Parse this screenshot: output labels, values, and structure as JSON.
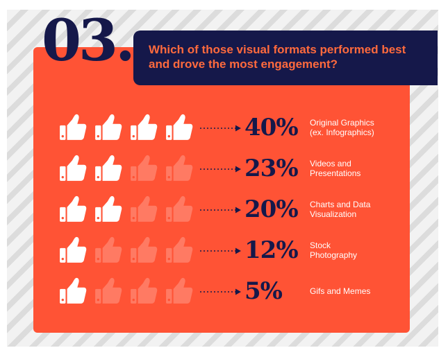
{
  "header": {
    "number": "03.",
    "question_line1": "Which of those visual formats performed best",
    "question_line2": "and drove the most engagement?"
  },
  "colors": {
    "background_panel": "#ff5335",
    "dark_navy": "#15184a",
    "question_text": "#ff6a3d",
    "icon_filled": "#ffffff",
    "icon_faded": "#ff7a63"
  },
  "icon_name": "thumbs-up-icon",
  "chart_data": {
    "type": "bar",
    "title": "",
    "categories": [
      [
        "Original Graphics",
        "(ex. Infographics)"
      ],
      [
        "Videos and",
        "Presentations"
      ],
      [
        "Charts and Data",
        "Visualization"
      ],
      [
        "Stock",
        "Photography"
      ],
      [
        "Gifs and Memes"
      ]
    ],
    "values": [
      40,
      23,
      20,
      12,
      5
    ],
    "value_labels": [
      "40%",
      "23%",
      "20%",
      "12%",
      "5%"
    ],
    "icons_filled": [
      4,
      2,
      2,
      1,
      1
    ],
    "icons_total": 4
  }
}
